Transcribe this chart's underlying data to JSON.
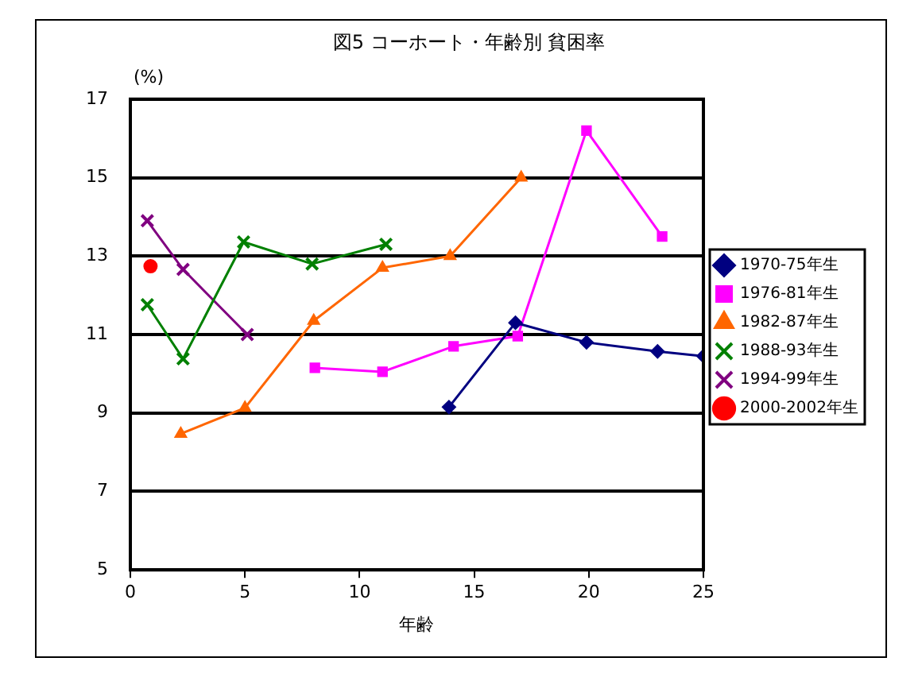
{
  "chart_data": {
    "type": "line",
    "title": "図5 コーホート・年齢別 貧困率",
    "xlabel": "年齢",
    "ylabel": "(%)",
    "xlim": [
      0,
      25
    ],
    "xticks": [
      0,
      5,
      10,
      15,
      20,
      25
    ],
    "ylim": [
      5,
      17
    ],
    "yticks": [
      5,
      7,
      9,
      11,
      13,
      15,
      17
    ],
    "grid": "y",
    "legend": "right",
    "series": [
      {
        "name": "1970-75年生",
        "color": "#000080",
        "marker": "diamond",
        "x": [
          13.9,
          16.8,
          19.9,
          23.0,
          25.0
        ],
        "values": [
          9.15,
          11.3,
          10.8,
          10.57,
          10.45
        ]
      },
      {
        "name": "1976-81年生",
        "color": "#ff00ff",
        "marker": "square",
        "x": [
          8.05,
          11.0,
          14.1,
          16.9,
          19.9,
          23.2
        ],
        "values": [
          10.15,
          10.05,
          10.7,
          10.96,
          16.2,
          13.5
        ]
      },
      {
        "name": "1982-87年生",
        "color": "#ff6600",
        "marker": "triangle",
        "x": [
          2.2,
          5.0,
          8.0,
          11.0,
          13.95,
          17.05
        ],
        "values": [
          8.47,
          9.13,
          11.35,
          12.7,
          13.0,
          15.0
        ]
      },
      {
        "name": "1988-93年生",
        "color": "#008000",
        "marker": "cross",
        "x": [
          0.74,
          2.3,
          4.94,
          7.93,
          11.15
        ],
        "values": [
          11.76,
          10.38,
          13.36,
          12.8,
          13.3
        ]
      },
      {
        "name": "1994-99年生",
        "color": "#800080",
        "marker": "cross",
        "x": [
          0.74,
          2.3,
          5.1
        ],
        "values": [
          13.9,
          12.66,
          11.0
        ]
      },
      {
        "name": "2000-2002年生",
        "color": "#ff0000",
        "marker": "circle",
        "x": [
          0.88
        ],
        "values": [
          12.74
        ]
      }
    ]
  }
}
